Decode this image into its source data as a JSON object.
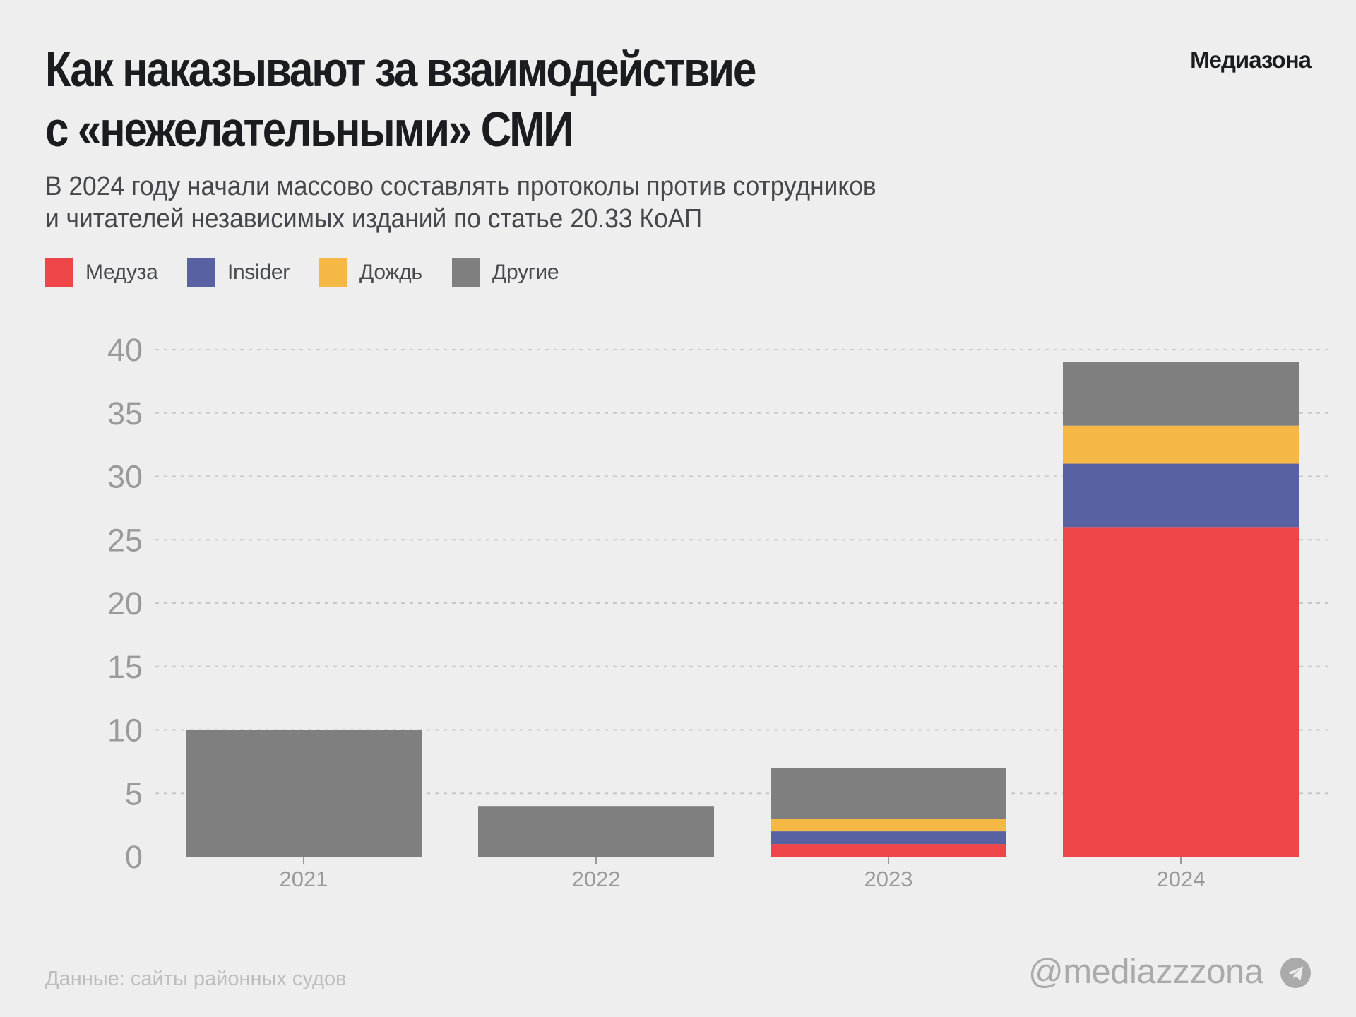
{
  "header": {
    "title_lines": [
      "Как наказывают за взаимодействие",
      "с «нежелательными» СМИ"
    ],
    "subtitle_lines": [
      "В 2024 году начали массово составлять протоколы против сотрудников",
      "и читателей независимых изданий по статье 20.33 КоАП"
    ],
    "logo": "Медиазона"
  },
  "legend": [
    {
      "label": "Медуза",
      "color": "#ed4548"
    },
    {
      "label": "Insider",
      "color": "#5861a2"
    },
    {
      "label": "Дождь",
      "color": "#f6b844"
    },
    {
      "label": "Другие",
      "color": "#7f7f7f"
    }
  ],
  "chart_data": {
    "type": "bar",
    "stacked": true,
    "title": "Как наказывают за взаимодействие с «нежелательными» СМИ",
    "subtitle": "В 2024 году начали массово составлять протоколы против сотрудников и читателей независимых изданий по статье 20.33 КоАП",
    "categories": [
      "2021",
      "2022",
      "2023",
      "2024"
    ],
    "series": [
      {
        "name": "Медуза",
        "color": "#ed4548",
        "values": [
          0,
          0,
          1,
          26
        ]
      },
      {
        "name": "Insider",
        "color": "#5861a2",
        "values": [
          0,
          0,
          1,
          5
        ]
      },
      {
        "name": "Дождь",
        "color": "#f6b844",
        "values": [
          0,
          0,
          1,
          3
        ]
      },
      {
        "name": "Другие",
        "color": "#7f7f7f",
        "values": [
          10,
          4,
          4,
          5
        ]
      }
    ],
    "xlabel": "",
    "ylabel": "",
    "ylim": [
      0,
      40
    ],
    "yticks": [
      0,
      5,
      10,
      15,
      20,
      25,
      30,
      35,
      40
    ],
    "grid": true,
    "legend_position": "top-left"
  },
  "footer": {
    "source": "Данные: сайты районных судов",
    "handle": "@mediazzzona",
    "handle_icon": "telegram-icon"
  },
  "colors": {
    "background": "#eeeeee",
    "title": "#1b1c20",
    "axis_text": "#9a9a9a",
    "grid": "#c8c8c8"
  }
}
